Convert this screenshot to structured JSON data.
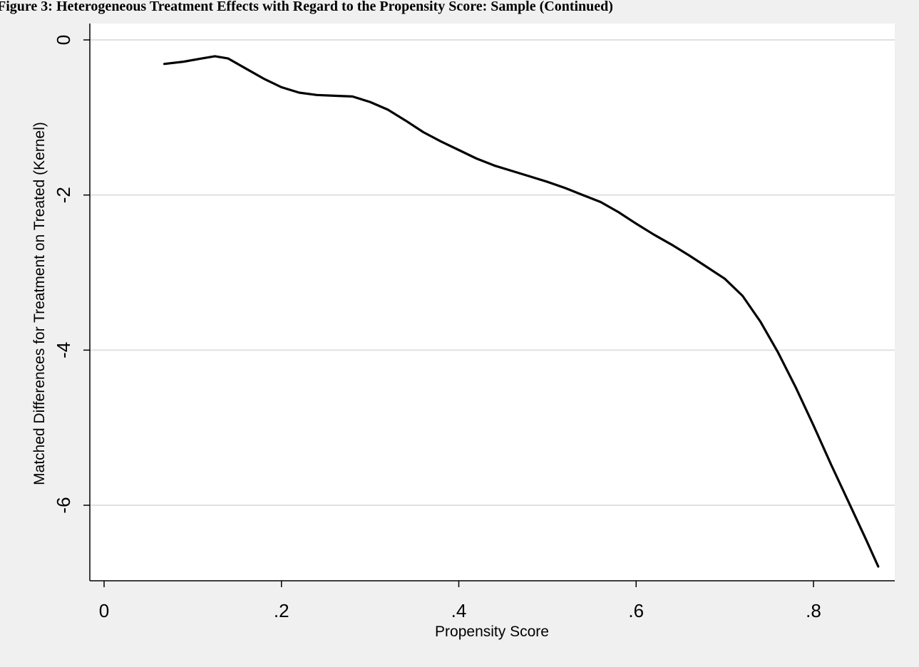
{
  "chart_data": {
    "type": "line",
    "title": "Figure 3: Heterogeneous Treatment Effects with Regard to the Propensity Score: Sample (Continued)",
    "xlabel": "Propensity Score",
    "ylabel": "Matched Differences for Treatment on Treated (Kernel)",
    "xlim": [
      -0.015,
      0.885
    ],
    "ylim": [
      -7.0,
      0.2
    ],
    "xticks": [
      0,
      0.2,
      0.4,
      0.6,
      0.8
    ],
    "xtick_labels": [
      "0",
      ".2",
      ".4",
      ".6",
      ".8"
    ],
    "yticks": [
      0,
      -2,
      -4,
      -6
    ],
    "ytick_labels": [
      "0",
      "-2",
      "-4",
      "-6"
    ],
    "grid": "horizontal",
    "legend": "none",
    "line_color": "#000000",
    "series": [
      {
        "x": [
          0.068,
          0.09,
          0.11,
          0.125,
          0.14,
          0.16,
          0.18,
          0.2,
          0.22,
          0.24,
          0.26,
          0.28,
          0.3,
          0.32,
          0.34,
          0.36,
          0.38,
          0.4,
          0.42,
          0.44,
          0.46,
          0.48,
          0.5,
          0.52,
          0.54,
          0.56,
          0.58,
          0.6,
          0.62,
          0.64,
          0.66,
          0.68,
          0.7,
          0.72,
          0.74,
          0.76,
          0.78,
          0.8,
          0.82,
          0.84,
          0.86,
          0.873
        ],
        "y": [
          -0.31,
          -0.28,
          -0.24,
          -0.21,
          -0.24,
          -0.37,
          -0.5,
          -0.61,
          -0.68,
          -0.71,
          -0.72,
          -0.73,
          -0.8,
          -0.9,
          -1.04,
          -1.19,
          -1.31,
          -1.42,
          -1.53,
          -1.62,
          -1.69,
          -1.76,
          -1.83,
          -1.91,
          -2.0,
          -2.09,
          -2.22,
          -2.37,
          -2.51,
          -2.64,
          -2.78,
          -2.93,
          -3.08,
          -3.3,
          -3.63,
          -4.03,
          -4.48,
          -4.97,
          -5.48,
          -5.97,
          -6.46,
          -6.79
        ]
      }
    ]
  }
}
